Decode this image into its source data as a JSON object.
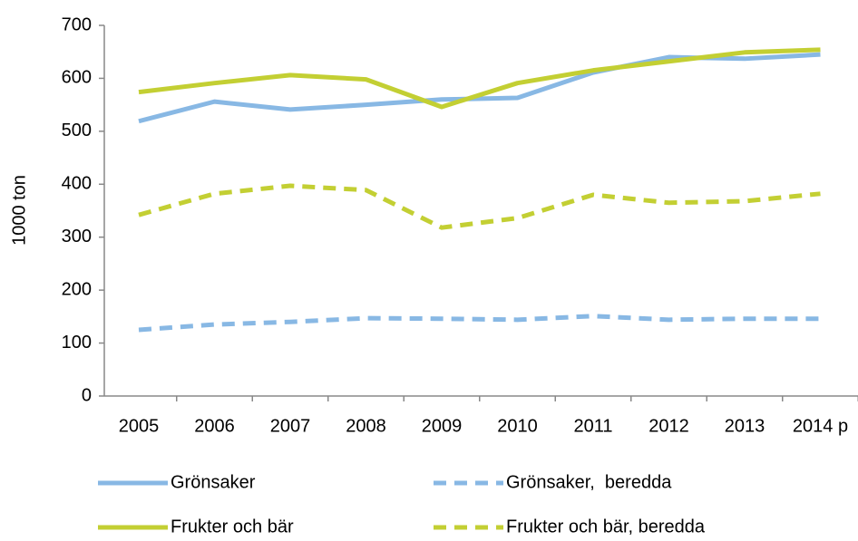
{
  "chart_data": {
    "type": "line",
    "y_label": "1000 ton",
    "categories": [
      "2005",
      "2006",
      "2007",
      "2008",
      "2009",
      "2010",
      "2011",
      "2012",
      "2013",
      "2014 p"
    ],
    "series": [
      {
        "name": "Grönsaker",
        "color": "#88b8e4",
        "dashed": false,
        "values": [
          519,
          556,
          541,
          550,
          560,
          563,
          611,
          640,
          637,
          645
        ]
      },
      {
        "name": "Grönsaker,  beredda",
        "color": "#88b8e4",
        "dashed": true,
        "values": [
          125,
          135,
          140,
          147,
          146,
          144,
          151,
          144,
          146,
          146
        ]
      },
      {
        "name": "Frukter och bär",
        "color": "#c3cf33",
        "dashed": false,
        "values": [
          574,
          591,
          606,
          598,
          546,
          591,
          615,
          632,
          649,
          654
        ]
      },
      {
        "name": "Frukter och bär, beredda",
        "color": "#c3cf33",
        "dashed": true,
        "values": [
          342,
          382,
          397,
          389,
          318,
          336,
          380,
          365,
          368,
          382
        ]
      }
    ],
    "ylim": [
      0,
      700
    ],
    "yticks": [
      0,
      100,
      200,
      300,
      400,
      500,
      600,
      700
    ],
    "grid": false
  }
}
